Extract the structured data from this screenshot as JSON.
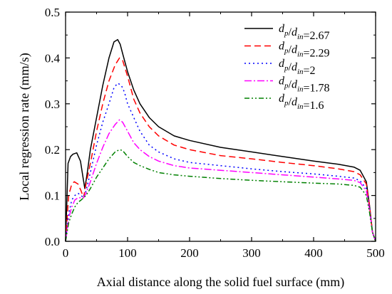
{
  "chart_data": {
    "type": "line",
    "xlabel": "Axial distance along the solid fuel surface (mm)",
    "ylabel": "Local regression rate (mm/s)",
    "xlim": [
      0,
      500
    ],
    "ylim": [
      0,
      0.5
    ],
    "xticks": [
      "0",
      "100",
      "200",
      "300",
      "400",
      "500"
    ],
    "yticks": [
      "0.0",
      "0.1",
      "0.2",
      "0.3",
      "0.4",
      "0.5"
    ],
    "grid": false,
    "legend_position": "top-right",
    "series": [
      {
        "name": "d_p/d_in=2.67",
        "label": {
          "a": "d",
          "a_sub": "p",
          "b": "d",
          "b_sub": "in",
          "value": "=2.67"
        },
        "color": "#000000",
        "dash": "",
        "x": [
          0,
          4,
          8,
          12,
          18,
          24,
          28,
          31,
          35,
          40,
          50,
          60,
          70,
          78,
          84,
          88,
          92,
          100,
          110,
          120,
          135,
          150,
          175,
          200,
          250,
          300,
          350,
          400,
          440,
          465,
          475,
          485,
          490,
          495,
          500
        ],
        "y": [
          0.0,
          0.17,
          0.185,
          0.19,
          0.193,
          0.175,
          0.14,
          0.115,
          0.15,
          0.2,
          0.27,
          0.34,
          0.4,
          0.435,
          0.44,
          0.43,
          0.41,
          0.37,
          0.33,
          0.3,
          0.27,
          0.25,
          0.23,
          0.22,
          0.205,
          0.195,
          0.185,
          0.175,
          0.168,
          0.162,
          0.155,
          0.13,
          0.08,
          0.02,
          0.0
        ]
      },
      {
        "name": "d_p/d_in=2.29",
        "label": {
          "a": "d",
          "a_sub": "p",
          "b": "d",
          "b_sub": "in",
          "value": "=2.29"
        },
        "color": "#ff0000",
        "dash": "9,5",
        "x": [
          0,
          5,
          10,
          14,
          20,
          25,
          29,
          33,
          40,
          50,
          60,
          70,
          80,
          87,
          92,
          100,
          110,
          120,
          135,
          150,
          175,
          200,
          250,
          300,
          350,
          400,
          440,
          465,
          475,
          485,
          490,
          495,
          500
        ],
        "y": [
          0.0,
          0.1,
          0.125,
          0.13,
          0.125,
          0.11,
          0.095,
          0.125,
          0.17,
          0.24,
          0.3,
          0.35,
          0.385,
          0.4,
          0.395,
          0.36,
          0.31,
          0.28,
          0.25,
          0.23,
          0.21,
          0.2,
          0.187,
          0.18,
          0.172,
          0.165,
          0.158,
          0.152,
          0.145,
          0.125,
          0.08,
          0.02,
          0.0
        ]
      },
      {
        "name": "d_p/d_in=2",
        "label": {
          "a": "d",
          "a_sub": "p",
          "b": "d",
          "b_sub": "in",
          "value": "=2"
        },
        "color": "#0000ff",
        "dash": "2,4",
        "x": [
          0,
          5,
          10,
          15,
          20,
          25,
          29,
          33,
          40,
          50,
          60,
          70,
          78,
          84,
          90,
          95,
          100,
          110,
          120,
          135,
          150,
          175,
          200,
          250,
          300,
          350,
          400,
          440,
          465,
          475,
          485,
          490,
          495,
          500
        ],
        "y": [
          0.0,
          0.06,
          0.09,
          0.1,
          0.105,
          0.1,
          0.095,
          0.11,
          0.15,
          0.21,
          0.26,
          0.3,
          0.335,
          0.345,
          0.34,
          0.325,
          0.3,
          0.27,
          0.24,
          0.21,
          0.195,
          0.18,
          0.172,
          0.165,
          0.158,
          0.152,
          0.147,
          0.142,
          0.138,
          0.132,
          0.115,
          0.075,
          0.02,
          0.0
        ]
      },
      {
        "name": "d_p/d_in=1.78",
        "label": {
          "a": "d",
          "a_sub": "p",
          "b": "d",
          "b_sub": "in",
          "value": "=1.78"
        },
        "color": "#ff00ff",
        "dash": "10,3,2,3",
        "x": [
          0,
          5,
          10,
          15,
          20,
          25,
          29,
          33,
          40,
          50,
          60,
          70,
          80,
          87,
          92,
          100,
          110,
          120,
          135,
          150,
          175,
          200,
          250,
          300,
          350,
          400,
          440,
          465,
          475,
          485,
          490,
          495,
          500
        ],
        "y": [
          0.0,
          0.05,
          0.075,
          0.09,
          0.095,
          0.095,
          0.095,
          0.105,
          0.13,
          0.17,
          0.205,
          0.235,
          0.255,
          0.265,
          0.26,
          0.24,
          0.215,
          0.2,
          0.185,
          0.175,
          0.165,
          0.16,
          0.155,
          0.15,
          0.145,
          0.14,
          0.136,
          0.133,
          0.128,
          0.11,
          0.07,
          0.02,
          0.0
        ]
      },
      {
        "name": "d_p/d_in=1.6",
        "label": {
          "a": "d",
          "a_sub": "p",
          "b": "d",
          "b_sub": "in",
          "value": "=1.6"
        },
        "color": "#008000",
        "dash": "7,3,2,3,2,3",
        "x": [
          0,
          5,
          10,
          15,
          20,
          25,
          29,
          33,
          40,
          50,
          60,
          70,
          80,
          87,
          92,
          100,
          110,
          120,
          135,
          150,
          175,
          200,
          250,
          300,
          350,
          400,
          440,
          465,
          475,
          485,
          490,
          495,
          500
        ],
        "y": [
          0.0,
          0.04,
          0.06,
          0.075,
          0.085,
          0.09,
          0.095,
          0.1,
          0.115,
          0.14,
          0.16,
          0.18,
          0.195,
          0.2,
          0.198,
          0.185,
          0.172,
          0.165,
          0.157,
          0.15,
          0.145,
          0.142,
          0.137,
          0.133,
          0.13,
          0.127,
          0.125,
          0.122,
          0.118,
          0.1,
          0.065,
          0.02,
          0.0
        ]
      }
    ]
  }
}
